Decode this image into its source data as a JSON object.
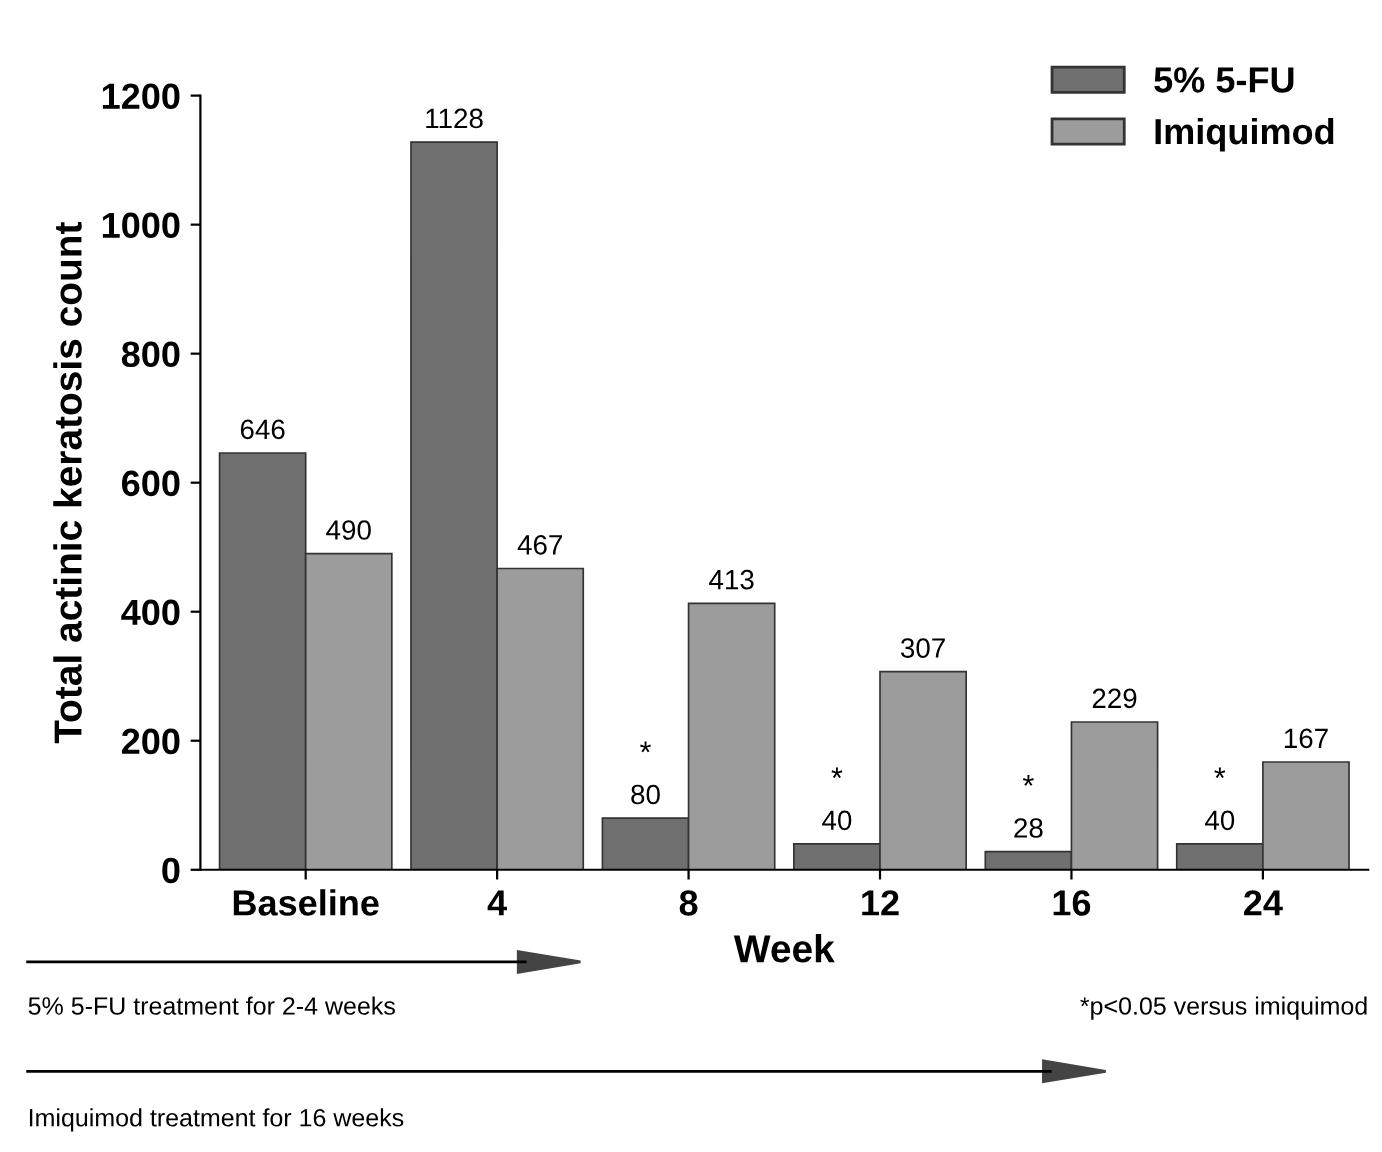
{
  "chart_data": {
    "type": "bar",
    "xlabel": "Week",
    "ylabel": "Total actinic keratosis count",
    "categories": [
      "Baseline",
      "4",
      "8",
      "12",
      "16",
      "24"
    ],
    "series": [
      {
        "name": "5% 5-FU",
        "color": "#6f6f6f",
        "values": [
          646,
          1128,
          80,
          40,
          28,
          40
        ]
      },
      {
        "name": "Imiquimod",
        "color": "#9c9c9c",
        "values": [
          490,
          467,
          413,
          307,
          229,
          167
        ]
      }
    ],
    "ylim": [
      0,
      1200
    ],
    "yticks": [
      0,
      200,
      400,
      600,
      800,
      1000,
      1200
    ],
    "data_labels": true,
    "grid": false,
    "legend": "top right",
    "annotations": [
      {
        "text": "*",
        "x": "8",
        "y": 80
      },
      {
        "text": "*",
        "x": "12",
        "y": 40
      },
      {
        "text": "*",
        "x": "16",
        "y": 28
      },
      {
        "text": "*",
        "x": "24",
        "y": 40
      },
      "5% 5-FU treatment for 2-4 weeks",
      "*p<0.05 versus imiquimod",
      "Imiquimod treatment for 16 weeks"
    ]
  }
}
